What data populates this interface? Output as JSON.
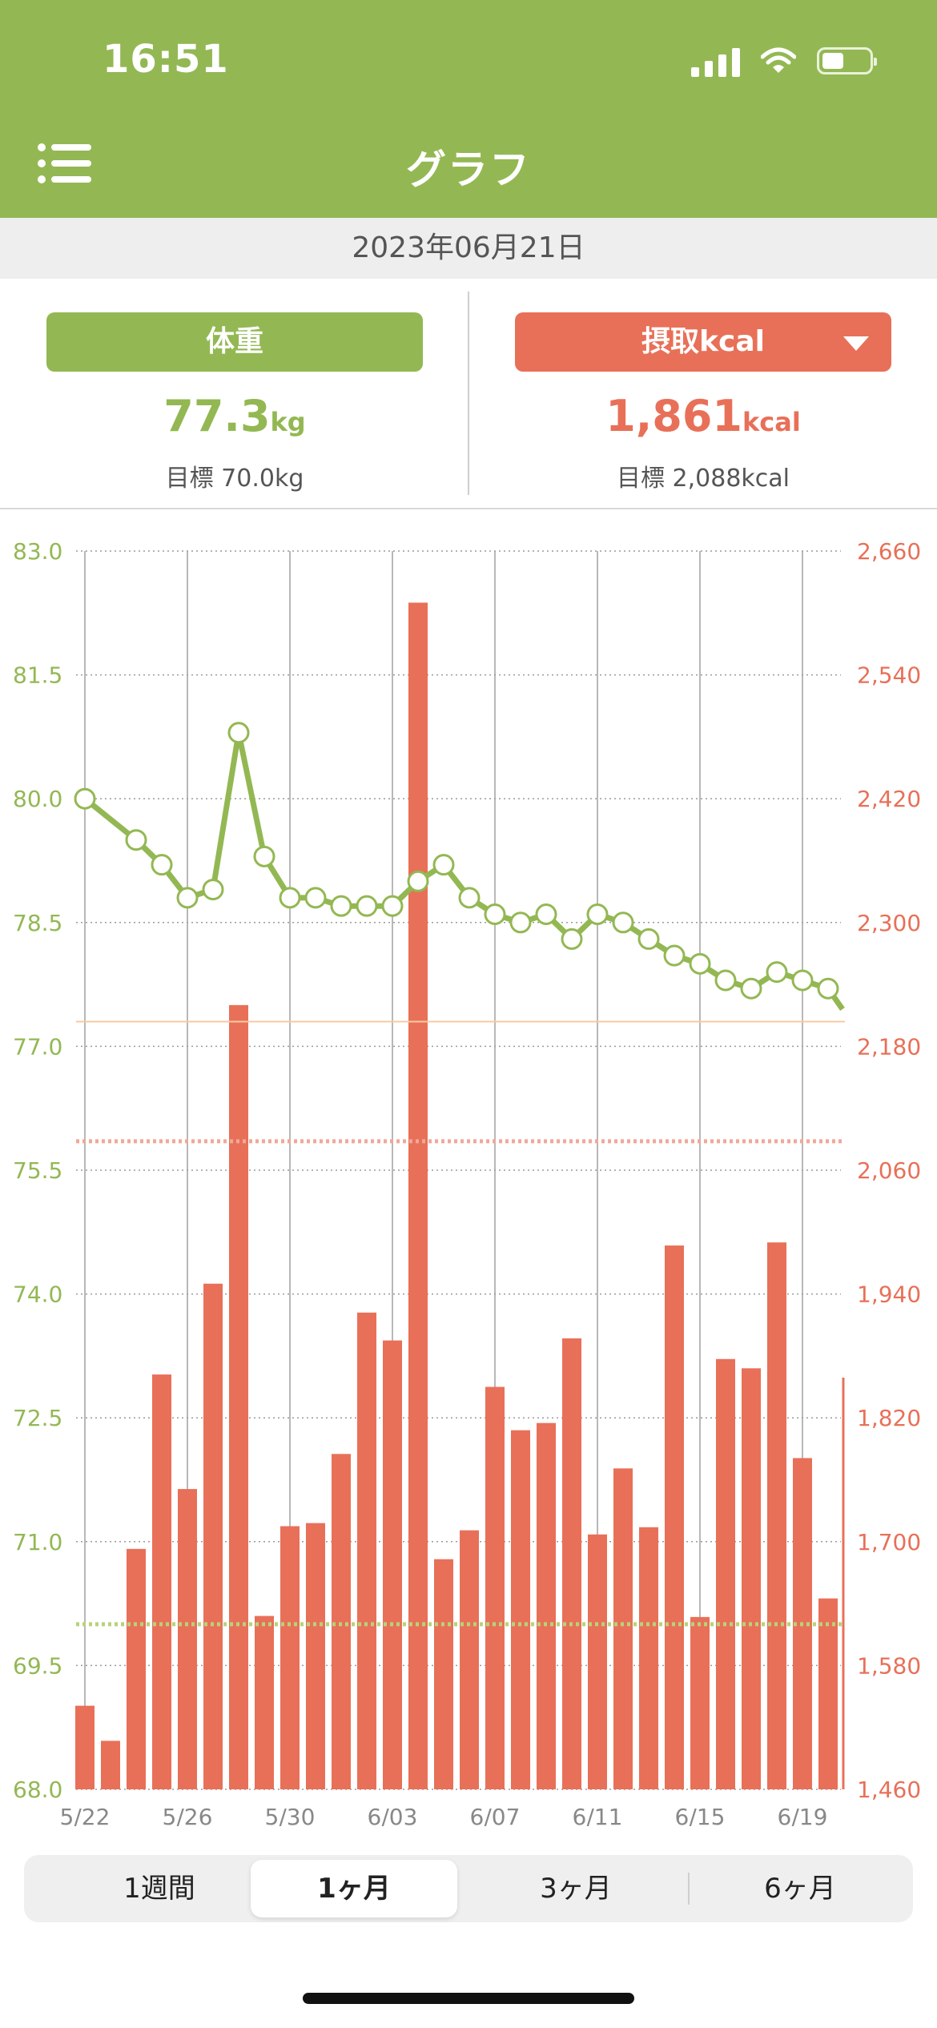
{
  "status_bar": {
    "time": "16:51"
  },
  "header": {
    "title": "グラフ"
  },
  "date": "2023年06月21日",
  "summary": {
    "weight": {
      "label": "体重",
      "value": "77.3",
      "unit": "kg",
      "target": "目標 70.0kg"
    },
    "kcal": {
      "label": "摂取kcal",
      "value": "1,861",
      "unit": "kcal",
      "target": "目標 2,088kcal"
    }
  },
  "chart_data": {
    "type": "bar",
    "x_tick_labels": [
      "5/22",
      "5/26",
      "5/30",
      "6/03",
      "6/07",
      "6/11",
      "6/15",
      "6/19"
    ],
    "left_axis": {
      "ylim": [
        68.0,
        83.0
      ],
      "ticks": [
        "83.0",
        "81.5",
        "80.0",
        "78.5",
        "77.0",
        "75.5",
        "74.0",
        "72.5",
        "71.0",
        "69.5",
        "68.0"
      ]
    },
    "right_axis": {
      "ylim": [
        1460,
        2660
      ],
      "ticks": [
        "2,660",
        "2,540",
        "2,420",
        "2,300",
        "2,180",
        "2,060",
        "1,940",
        "1,820",
        "1,700",
        "1,580",
        "1,460"
      ]
    },
    "series": [
      {
        "kind": "bar",
        "axis": "right",
        "values": [
          1541,
          1507,
          1693,
          1862,
          1751,
          1950,
          2220,
          1628,
          1715,
          1718,
          1785,
          1922,
          1895,
          2610,
          1683,
          1711,
          1850,
          1808,
          1815,
          1897,
          1707,
          1771,
          1714,
          1987,
          1627,
          1877,
          1868,
          1990,
          1781,
          1645
        ]
      },
      {
        "kind": "line",
        "axis": "left",
        "values": [
          80.0,
          null,
          79.5,
          79.2,
          78.8,
          78.9,
          80.8,
          79.3,
          78.8,
          78.8,
          78.7,
          78.7,
          78.7,
          79.0,
          79.2,
          78.8,
          78.6,
          78.5,
          78.6,
          78.3,
          78.6,
          78.5,
          78.3,
          78.1,
          78.0,
          77.8,
          77.7,
          77.9,
          77.8,
          77.7
        ]
      }
    ],
    "reference_lines": [
      {
        "axis": "left",
        "value": 77.3,
        "style": "solid",
        "color": "#f8c9a0"
      },
      {
        "axis": "right",
        "value": 2088,
        "style": "dotted",
        "color": "#f0a898"
      },
      {
        "axis": "left",
        "value": 70.0,
        "style": "dotted",
        "color": "#b8d27a"
      }
    ],
    "colors": {
      "weight": "#93b853",
      "kcal": "#e87058"
    }
  },
  "period_tabs": [
    {
      "label": "1週間"
    },
    {
      "label": "1ヶ月",
      "active": true
    },
    {
      "label": "3ヶ月"
    },
    {
      "label": "6ヶ月"
    }
  ]
}
